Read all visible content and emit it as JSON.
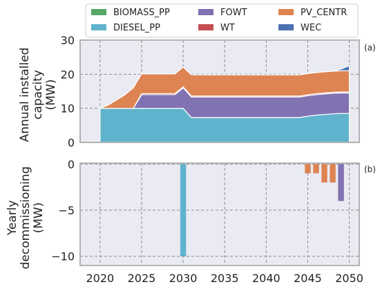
{
  "chart_data": [
    {
      "type": "area",
      "panel_label": "(a)",
      "ylabel": "Annual installed\ncapacity\n(MW)",
      "xlim": [
        2017.6,
        2051.2
      ],
      "ylim": [
        0,
        30
      ],
      "x_ticks": [
        2020,
        2025,
        2030,
        2035,
        2040,
        2045,
        2050
      ],
      "x_tick_labels": [
        "2020",
        "2025",
        "2030",
        "2035",
        "2040",
        "2045",
        "2050"
      ],
      "y_ticks": [
        0,
        10,
        20,
        30
      ],
      "y_tick_labels": [
        "0",
        "10",
        "20",
        "30"
      ],
      "grid": true,
      "stacked": true,
      "x": [
        2020,
        2021,
        2022,
        2023,
        2024,
        2025,
        2026,
        2027,
        2028,
        2029,
        2030,
        2031,
        2032,
        2033,
        2034,
        2035,
        2036,
        2037,
        2038,
        2039,
        2040,
        2041,
        2042,
        2043,
        2044,
        2045,
        2046,
        2047,
        2048,
        2049,
        2050
      ],
      "series": [
        {
          "name": "DIESEL_PP",
          "color": "#5fb3cc",
          "values": [
            10,
            10,
            10,
            10,
            10,
            10,
            10,
            10,
            10,
            10,
            10,
            7.3,
            7.3,
            7.3,
            7.3,
            7.3,
            7.3,
            7.3,
            7.3,
            7.3,
            7.3,
            7.3,
            7.3,
            7.3,
            7.3,
            7.7,
            8.0,
            8.2,
            8.4,
            8.5,
            8.5
          ]
        },
        {
          "name": "BIOMASS_PP",
          "color": "#55a868",
          "values": [
            0,
            0,
            0,
            0,
            0,
            0,
            0,
            0,
            0,
            0,
            0,
            0,
            0,
            0,
            0,
            0,
            0,
            0,
            0,
            0,
            0,
            0,
            0,
            0,
            0,
            0,
            0,
            0,
            0,
            0,
            0
          ]
        },
        {
          "name": "FOWT",
          "color": "#8172b2",
          "values": [
            0,
            0,
            0,
            0,
            0,
            4.0,
            4.0,
            4.0,
            4.0,
            4.0,
            6.0,
            6.0,
            6.0,
            6.0,
            6.0,
            6.0,
            6.0,
            6.0,
            6.0,
            6.0,
            6.0,
            6.0,
            6.0,
            6.0,
            6.0,
            6.0,
            6.0,
            6.0,
            6.0,
            6.0,
            6.0
          ]
        },
        {
          "name": "WT",
          "color": "#c44e52",
          "values": [
            0,
            0,
            0,
            0,
            0,
            0.3,
            0.3,
            0.3,
            0.3,
            0.3,
            0.3,
            0.3,
            0.3,
            0.3,
            0.3,
            0.3,
            0.3,
            0.3,
            0.3,
            0.3,
            0.3,
            0.3,
            0.3,
            0.3,
            0.3,
            0.3,
            0.3,
            0.3,
            0.3,
            0.3,
            0.3
          ]
        },
        {
          "name": "PV_CENTR",
          "color": "#dd8452",
          "values": [
            0,
            1.0,
            2.5,
            4.0,
            6.0,
            5.8,
            5.8,
            5.8,
            5.8,
            5.8,
            5.8,
            6.2,
            6.2,
            6.2,
            6.2,
            6.2,
            6.2,
            6.2,
            6.2,
            6.2,
            6.2,
            6.2,
            6.2,
            6.2,
            6.2,
            6.2,
            6.2,
            6.2,
            6.2,
            6.2,
            6.2
          ]
        },
        {
          "name": "WEC",
          "color": "#4c72b0",
          "values": [
            0,
            0,
            0,
            0,
            0,
            0,
            0,
            0,
            0,
            0,
            0,
            0,
            0,
            0,
            0,
            0,
            0,
            0,
            0,
            0,
            0,
            0,
            0,
            0,
            0,
            0,
            0,
            0,
            0,
            0.5,
            1.5
          ]
        }
      ]
    },
    {
      "type": "bar",
      "panel_label": "(b)",
      "ylabel": "Yearly\ndecommissioning\n(MW)",
      "xlim": [
        2017.6,
        2051.2
      ],
      "ylim": [
        -11,
        0.1
      ],
      "x_ticks": [
        2020,
        2025,
        2030,
        2035,
        2040,
        2045,
        2050
      ],
      "x_tick_labels": [
        "2020",
        "2025",
        "2030",
        "2035",
        "2040",
        "2045",
        "2050"
      ],
      "y_ticks": [
        0,
        -5,
        -10
      ],
      "y_tick_labels": [
        "0",
        "−5",
        "−10"
      ],
      "grid": true,
      "bar_width": 0.7,
      "bars": [
        {
          "x": 2030,
          "value": -10,
          "series": "DIESEL_PP",
          "color": "#5fb3cc"
        },
        {
          "x": 2045,
          "value": -1,
          "series": "PV_CENTR",
          "color": "#dd8452"
        },
        {
          "x": 2046,
          "value": -1,
          "series": "PV_CENTR",
          "color": "#dd8452"
        },
        {
          "x": 2047,
          "value": -2,
          "series": "PV_CENTR",
          "color": "#dd8452"
        },
        {
          "x": 2048,
          "value": -2,
          "series": "PV_CENTR",
          "color": "#dd8452"
        },
        {
          "x": 2049,
          "value": -4,
          "series": "FOWT",
          "color": "#8172b2"
        }
      ]
    }
  ],
  "legend": {
    "placement": "top-center",
    "entries": [
      {
        "name": "BIOMASS_PP",
        "color": "#55a868"
      },
      {
        "name": "FOWT",
        "color": "#8172b2"
      },
      {
        "name": "PV_CENTR",
        "color": "#dd8452"
      },
      {
        "name": "DIESEL_PP",
        "color": "#5fb3cc"
      },
      {
        "name": "WT",
        "color": "#c44e52"
      },
      {
        "name": "WEC",
        "color": "#4c72b0"
      }
    ]
  }
}
